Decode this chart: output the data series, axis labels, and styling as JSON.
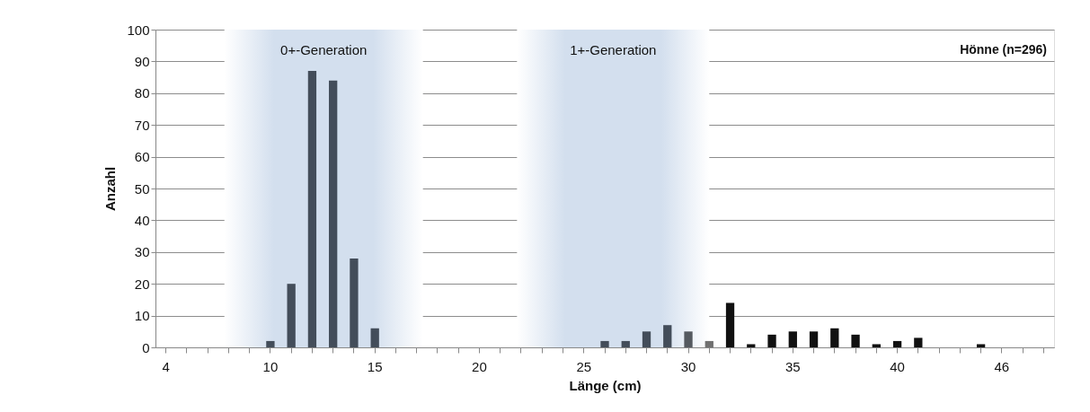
{
  "chart_data": {
    "type": "bar",
    "xlabel": "Länge (cm)",
    "ylabel": "Anzahl",
    "categories": [
      "4",
      null,
      null,
      null,
      null,
      "10",
      null,
      null,
      null,
      null,
      "15",
      null,
      null,
      null,
      null,
      "20",
      null,
      null,
      null,
      null,
      "25",
      null,
      null,
      null,
      null,
      "30",
      null,
      null,
      null,
      null,
      "35",
      null,
      null,
      null,
      null,
      "40",
      null,
      null,
      null,
      null,
      "46",
      null,
      null
    ],
    "values": [
      0,
      0,
      0,
      0,
      0,
      2,
      20,
      87,
      84,
      28,
      6,
      0,
      0,
      0,
      0,
      0,
      0,
      0,
      0,
      0,
      0,
      2,
      2,
      5,
      7,
      5,
      2,
      14,
      1,
      4,
      5,
      5,
      6,
      4,
      1,
      2,
      3,
      0,
      0,
      1,
      0,
      0,
      0
    ],
    "colors": [
      "#434d5a",
      "#434d5a",
      "#434d5a",
      "#434d5a",
      "#434d5a",
      "#434d5a",
      "#434d5a",
      "#434d5a",
      "#434d5a",
      "#434d5a",
      "#434d5a",
      "#434d5a",
      "#434d5a",
      "#434d5a",
      "#434d5a",
      "#434d5a",
      "#434d5a",
      "#434d5a",
      "#434d5a",
      "#434d5a",
      "#434d5a",
      "#434d5a",
      "#434d5a",
      "#434d5a",
      "#434d5a",
      "#555a60",
      "#707070",
      "#111111",
      "#111111",
      "#111111",
      "#111111",
      "#111111",
      "#111111",
      "#111111",
      "#111111",
      "#111111",
      "#111111",
      "#111111",
      "#111111",
      "#111111",
      "#111111",
      "#111111",
      "#111111"
    ],
    "ylim": [
      0,
      100
    ],
    "yticks": [
      0,
      10,
      20,
      30,
      40,
      50,
      60,
      70,
      80,
      90,
      100
    ],
    "grid": "y",
    "annotations": [
      "0+-Generation",
      "1+-Generation",
      "Hönne (n=296)"
    ]
  }
}
